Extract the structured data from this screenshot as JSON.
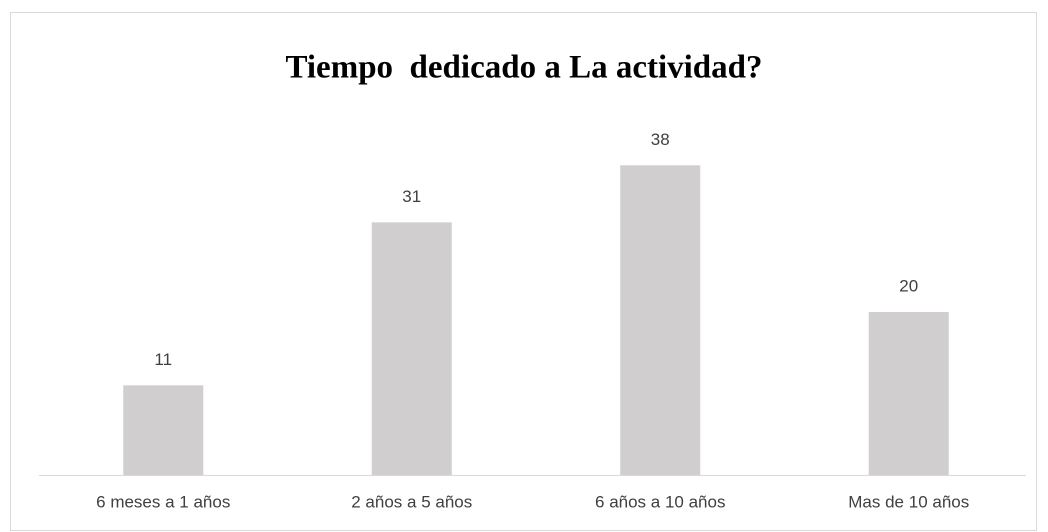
{
  "chart_data": {
    "type": "bar",
    "title": "Tiempo  dedicado a La actividad?",
    "categories": [
      "6 meses a 1 años",
      "2 años a 5 años",
      "6 años a 10 años",
      "Mas de 10 años"
    ],
    "values": [
      11,
      31,
      38,
      20
    ],
    "color": "#d0cece",
    "ylim": [
      0,
      40
    ]
  }
}
